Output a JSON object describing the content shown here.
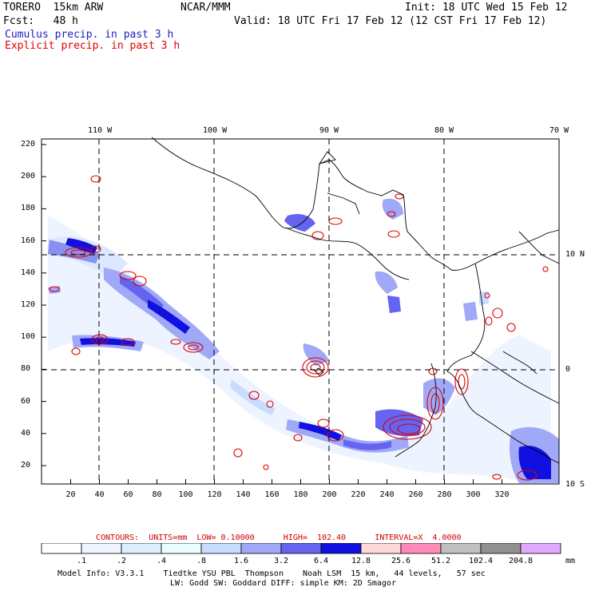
{
  "header": {
    "model": "TORERO  15km ARW",
    "org": "NCAR/MMM",
    "init": "Init: 18 UTC Wed 15 Feb 12",
    "fcst": "Fcst:   48 h",
    "valid": "Valid: 18 UTC Fri 17 Feb 12 (12 CST Fri 17 Feb 12)",
    "legend_cumulus": "Cumulus precip. in past 3 h",
    "legend_explicit": "Explicit precip. in past 3 h",
    "legend_cumulus_color": "#2020c0",
    "legend_explicit_color": "#e00000"
  },
  "map": {
    "top_lon_labels": [
      "110 W",
      "100 W",
      "90 W",
      "80 W",
      "70 W"
    ],
    "right_lat_labels": [
      "10 N",
      "0",
      "10 S"
    ],
    "y_ticks": [
      "220",
      "200",
      "180",
      "160",
      "140",
      "120",
      "100",
      "80",
      "60",
      "40",
      "20"
    ],
    "x_ticks": [
      "20",
      "40",
      "60",
      "80",
      "100",
      "120",
      "140",
      "160",
      "180",
      "200",
      "220",
      "240",
      "260",
      "280",
      "300",
      "320"
    ]
  },
  "contours": {
    "text": "CONTOURS:  UNITS=mm  LOW= 0.10000      HIGH=  102.40      INTERVAL=X  4.0000",
    "color": "#d00000"
  },
  "colorbar": {
    "labels": [
      ".1",
      ".2",
      ".4",
      ".8",
      "1.6",
      "3.2",
      "6.4",
      "12.8",
      "25.6",
      "51.2",
      "102.4",
      "204.8"
    ],
    "unit": "mm",
    "colors": [
      "#ffffff",
      "#eef5ff",
      "#dcefff",
      "#e8ffff",
      "#c8dcff",
      "#a0a8f8",
      "#6464f0",
      "#1010e0",
      "#ffd8d8",
      "#ff8ab8",
      "#c0c0c0",
      "#909090",
      "#e0a8ff"
    ]
  },
  "footer": {
    "line1": "Model Info: V3.3.1    Tiedtke YSU PBL  Thompson    Noah LSM  15 km,   44 levels,   57 sec",
    "line2": "LW: Godd SW: Goddard DIFF: simple KM: 2D Smagor"
  }
}
